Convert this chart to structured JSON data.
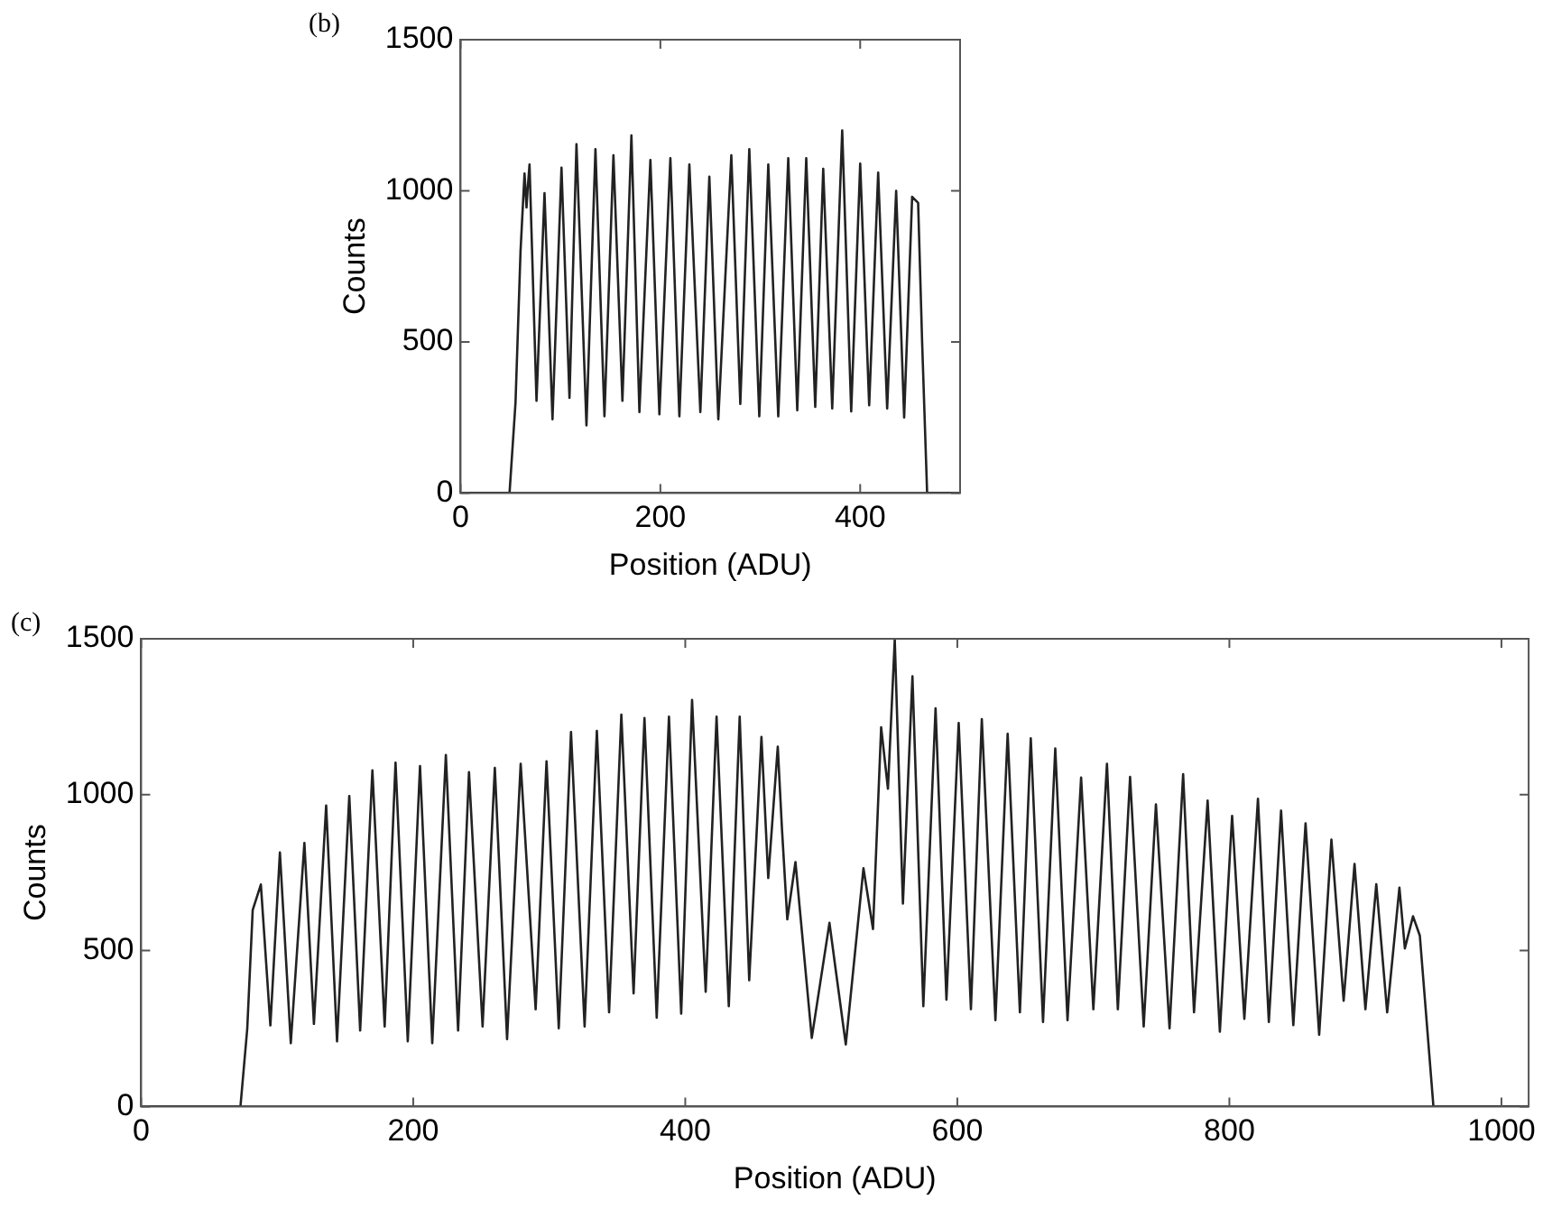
{
  "chart_data": [
    {
      "type": "line",
      "annotations": [
        "(b)"
      ],
      "xlabel": "Position (ADU)",
      "ylabel": "Counts",
      "xlim": [
        0,
        500
      ],
      "xticks": [
        0,
        200,
        400
      ],
      "ylim": [
        0,
        1500
      ],
      "yticks": [
        0,
        500,
        1000,
        1500
      ],
      "grid": false,
      "legend": false,
      "series": [
        {
          "color": "#222222",
          "x": [
            0,
            49,
            55,
            60,
            64,
            66,
            67,
            69,
            76,
            84,
            92,
            101,
            109,
            116,
            126,
            135,
            144,
            153,
            162,
            171,
            179,
            190,
            199,
            210,
            219,
            229,
            240,
            249,
            258,
            271,
            280,
            289,
            299,
            308,
            318,
            328,
            337,
            346,
            355,
            363,
            372,
            382,
            391,
            400,
            409,
            418,
            427,
            436,
            444,
            452,
            458,
            462,
            467,
            500
          ],
          "values": [
            0,
            0,
            300,
            800,
            1057,
            945,
            1000,
            1087,
            305,
            992,
            244,
            1077,
            315,
            1154,
            224,
            1138,
            254,
            1118,
            305,
            1183,
            268,
            1102,
            260,
            1108,
            254,
            1087,
            268,
            1047,
            244,
            1118,
            295,
            1138,
            254,
            1087,
            254,
            1108,
            274,
            1108,
            285,
            1073,
            280,
            1200,
            270,
            1090,
            290,
            1060,
            280,
            1000,
            250,
            980,
            960,
            500,
            0,
            0
          ]
        }
      ]
    },
    {
      "type": "line",
      "annotations": [
        "(c)"
      ],
      "xlabel": "Position (ADU)",
      "ylabel": "Counts",
      "xlim": [
        0,
        1020
      ],
      "xticks": [
        0,
        200,
        400,
        600,
        800,
        1000
      ],
      "ylim": [
        0,
        1500
      ],
      "yticks": [
        0,
        500,
        1000,
        1500
      ],
      "grid": false,
      "legend": false,
      "series": [
        {
          "color": "#222222",
          "x": [
            0,
            73,
            78,
            82,
            88,
            95,
            102,
            110,
            120,
            127,
            136,
            144,
            153,
            161,
            170,
            179,
            187,
            196,
            205,
            214,
            224,
            233,
            241,
            251,
            260,
            269,
            279,
            290,
            298,
            307,
            316,
            326,
            335,
            344,
            353,
            362,
            370,
            379,
            388,
            397,
            405,
            415,
            423,
            432,
            440,
            447,
            456,
            461,
            468,
            471,
            475,
            481,
            493,
            506,
            511,
            518,
            531,
            538,
            544,
            549,
            554,
            560,
            567,
            575,
            584,
            592,
            601,
            610,
            618,
            628,
            637,
            646,
            654,
            663,
            672,
            681,
            691,
            700,
            710,
            718,
            727,
            737,
            746,
            756,
            766,
            774,
            784,
            793,
            802,
            811,
            821,
            829,
            838,
            847,
            856,
            866,
            875,
            884,
            892,
            900,
            908,
            916,
            925,
            929,
            935,
            940,
            950,
            1020
          ],
          "values": [
            0,
            0,
            250,
            630,
            712,
            260,
            815,
            203,
            845,
            265,
            965,
            209,
            996,
            244,
            1078,
            257,
            1103,
            209,
            1092,
            203,
            1127,
            244,
            1072,
            257,
            1086,
            216,
            1099,
            312,
            1107,
            251,
            1201,
            257,
            1205,
            302,
            1257,
            363,
            1246,
            285,
            1250,
            298,
            1304,
            368,
            1250,
            322,
            1250,
            405,
            1185,
            733,
            1154,
            897,
            600,
            784,
            220,
            589,
            425,
            199,
            764,
            569,
            1216,
            1019,
            1497,
            651,
            1380,
            322,
            1277,
            343,
            1230,
            312,
            1242,
            277,
            1195,
            302,
            1181,
            271,
            1148,
            277,
            1055,
            312,
            1099,
            312,
            1057,
            257,
            969,
            251,
            1066,
            302,
            981,
            240,
            932,
            281,
            987,
            271,
            949,
            261,
            908,
            230,
            856,
            339,
            778,
            312,
            713,
            302,
            702,
            507,
            610,
            548,
            0,
            0
          ]
        }
      ]
    }
  ]
}
